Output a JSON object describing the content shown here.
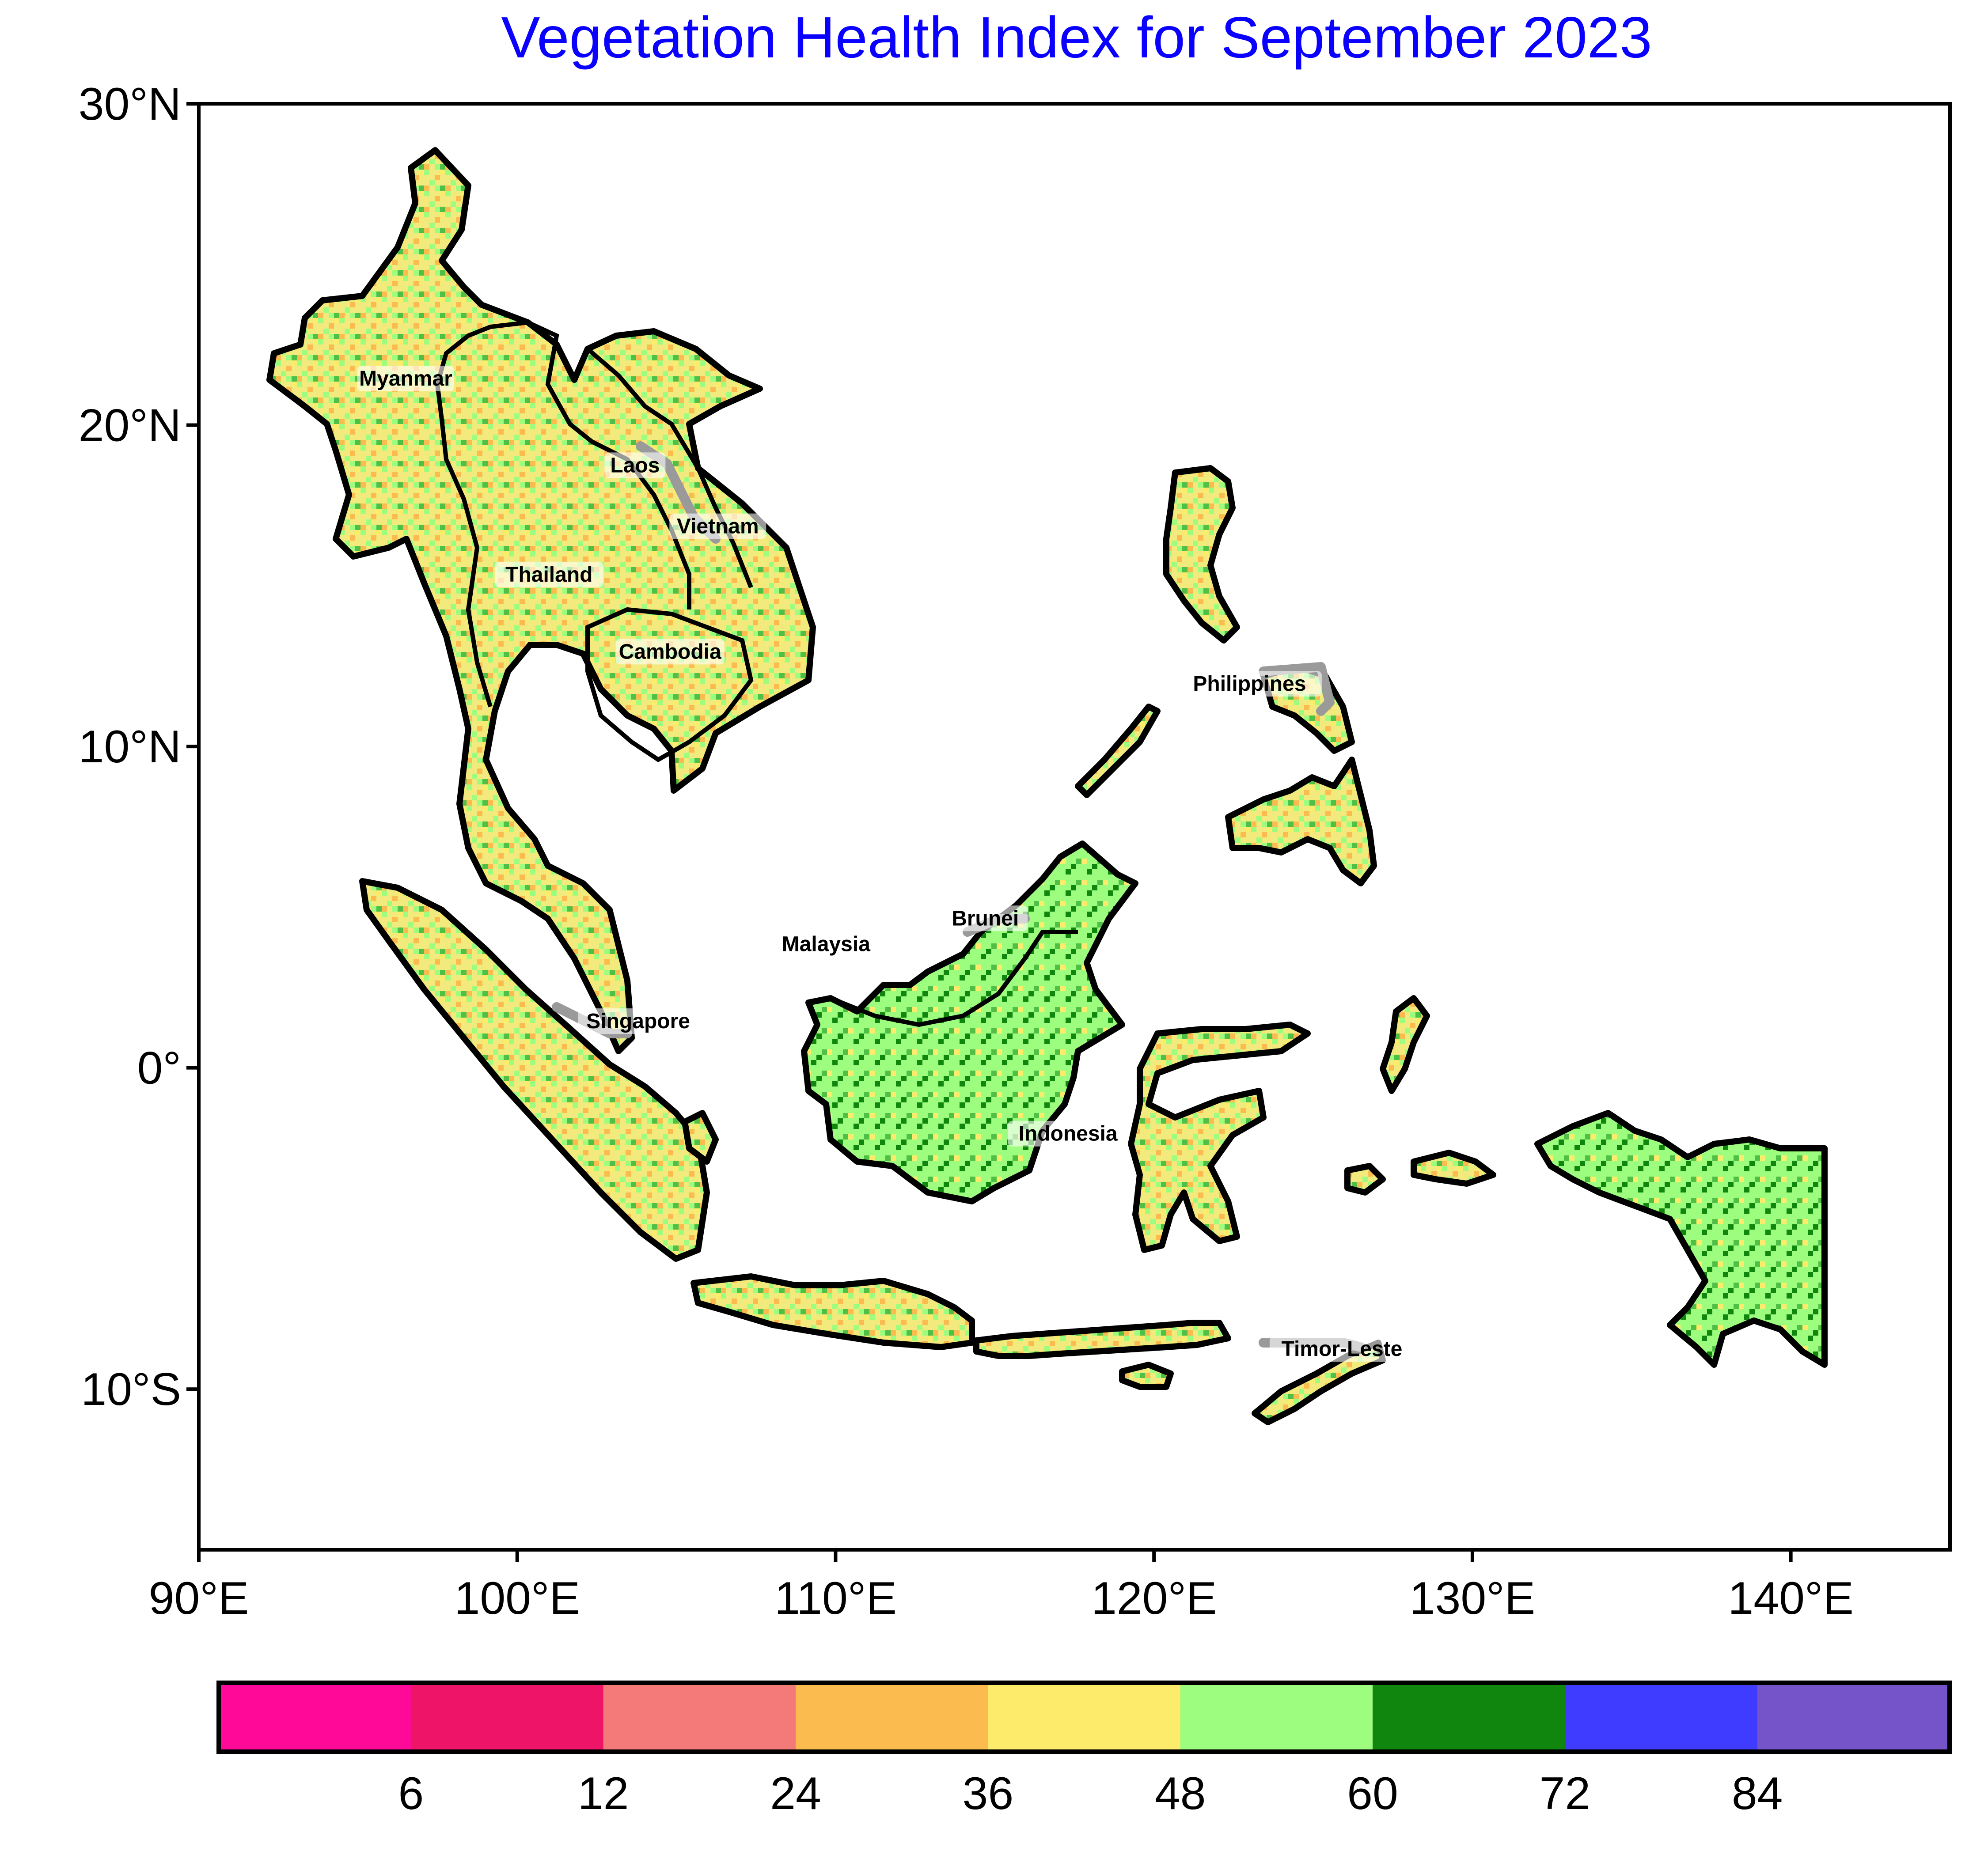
{
  "title": "Vegetation Health Index for September 2023",
  "map": {
    "extent": {
      "lon": [
        90,
        145
      ],
      "lat": [
        -15,
        30
      ]
    },
    "x_ticks": [
      {
        "value": 90,
        "label": "90°E"
      },
      {
        "value": 100,
        "label": "100°E"
      },
      {
        "value": 110,
        "label": "110°E"
      },
      {
        "value": 120,
        "label": "120°E"
      },
      {
        "value": 130,
        "label": "130°E"
      },
      {
        "value": 140,
        "label": "140°E"
      }
    ],
    "y_ticks": [
      {
        "value": 30,
        "label": "30°N"
      },
      {
        "value": 20,
        "label": "20°N"
      },
      {
        "value": 10,
        "label": "10°N"
      },
      {
        "value": 0,
        "label": "0°"
      },
      {
        "value": -10,
        "label": "10°S"
      }
    ],
    "country_labels": [
      {
        "name": "Myanmar",
        "lon": 96.5,
        "lat": 21.3
      },
      {
        "name": "Laos",
        "lon": 103.7,
        "lat": 18.6
      },
      {
        "name": "Vietnam",
        "lon": 106.3,
        "lat": 16.7
      },
      {
        "name": "Thailand",
        "lon": 101.0,
        "lat": 15.2
      },
      {
        "name": "Cambodia",
        "lon": 104.8,
        "lat": 12.8
      },
      {
        "name": "Philippines",
        "lon": 123.0,
        "lat": 11.8
      },
      {
        "name": "Brunei",
        "lon": 114.7,
        "lat": 4.5
      },
      {
        "name": "Malaysia",
        "lon": 109.7,
        "lat": 3.7
      },
      {
        "name": "Singapore",
        "lon": 103.8,
        "lat": 1.3
      },
      {
        "name": "Indonesia",
        "lon": 117.3,
        "lat": -2.2
      },
      {
        "name": "Timor-Leste",
        "lon": 125.9,
        "lat": -8.9
      }
    ]
  },
  "colorbar": {
    "colors": [
      "#ff0a98",
      "#ee1467",
      "#f47a7a",
      "#fcbb4e",
      "#fdec6c",
      "#9cfd7e",
      "#10860e",
      "#3f3cff",
      "#7553c8"
    ],
    "tick_values": [
      6,
      12,
      24,
      36,
      48,
      60,
      72,
      84
    ],
    "tick_labels": [
      "6",
      "12",
      "24",
      "36",
      "48",
      "60",
      "72",
      "84"
    ]
  },
  "vhi_palette": {
    "land_base": "#f3e87a",
    "dominant": [
      "#fdec6c",
      "#9cfd7e",
      "#fcbb4e",
      "#10860e"
    ]
  }
}
